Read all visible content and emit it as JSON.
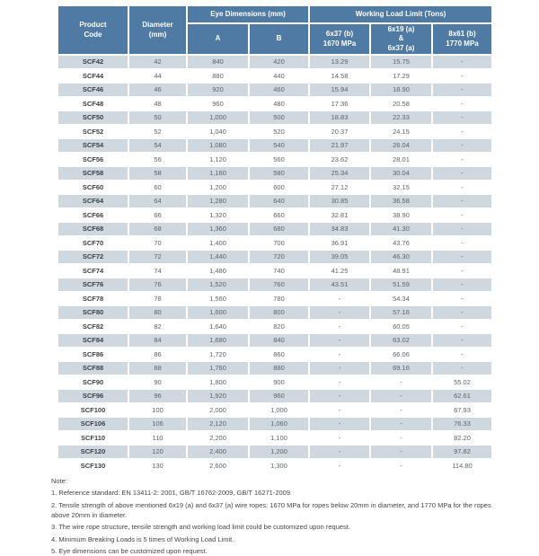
{
  "colors": {
    "header_bg": "#4f7aa3",
    "header_text": "#ffffff",
    "row_alt_bg": "#cfd8de",
    "row_bg": "#ffffff",
    "cell_text": "#5d6468",
    "code_text": "#3c4246",
    "note_text": "#474747"
  },
  "table": {
    "headers": {
      "product_code": "Product\nCode",
      "diameter": "Diameter\n(mm)",
      "eye_dimensions": "Eye Dimensions (mm)",
      "working_load_limit": "Working Load Limit (Tons)",
      "sub_a": "A",
      "sub_b": "B",
      "wll_6x37b": "6x37 (b)\n1670 MPa",
      "wll_6x19a": "6x19 (a)\n&\n6x37 (a)",
      "wll_8x61b": "8x61 (b)\n1770 MPa"
    },
    "rows": [
      [
        "SCF42",
        "42",
        "840",
        "420",
        "13.29",
        "15.75",
        "-"
      ],
      [
        "SCF44",
        "44",
        "880",
        "440",
        "14.58",
        "17.29",
        "-"
      ],
      [
        "SCF46",
        "46",
        "920",
        "460",
        "15.94",
        "18.90",
        "-"
      ],
      [
        "SCF48",
        "48",
        "960",
        "480",
        "17.36",
        "20.58",
        "-"
      ],
      [
        "SCF50",
        "50",
        "1,000",
        "500",
        "18.83",
        "22.33",
        "-"
      ],
      [
        "SCF52",
        "52",
        "1,040",
        "520",
        "20.37",
        "24.15",
        "-"
      ],
      [
        "SCF54",
        "54",
        "1,080",
        "540",
        "21.97",
        "26.04",
        "-"
      ],
      [
        "SCF56",
        "56",
        "1,120",
        "560",
        "23.62",
        "28.01",
        "-"
      ],
      [
        "SCF58",
        "58",
        "1,160",
        "580",
        "25.34",
        "30.04",
        "-"
      ],
      [
        "SCF60",
        "60",
        "1,200",
        "600",
        "27.12",
        "32.15",
        "-"
      ],
      [
        "SCF64",
        "64",
        "1,280",
        "640",
        "30.85",
        "36.58",
        "-"
      ],
      [
        "SCF66",
        "66",
        "1,320",
        "660",
        "32.81",
        "38.90",
        "-"
      ],
      [
        "SCF68",
        "68",
        "1,360",
        "680",
        "34.83",
        "41.30",
        "-"
      ],
      [
        "SCF70",
        "70",
        "1,400",
        "700",
        "36.91",
        "43.76",
        "-"
      ],
      [
        "SCF72",
        "72",
        "1,440",
        "720",
        "39.05",
        "46.30",
        "-"
      ],
      [
        "SCF74",
        "74",
        "1,480",
        "740",
        "41.25",
        "48.91",
        "-"
      ],
      [
        "SCF76",
        "76",
        "1,520",
        "760",
        "43.51",
        "51.59",
        "-"
      ],
      [
        "SCF78",
        "78",
        "1,560",
        "780",
        "-",
        "54.34",
        "-"
      ],
      [
        "SCF80",
        "80",
        "1,600",
        "800",
        "-",
        "57.16",
        "-"
      ],
      [
        "SCF82",
        "82",
        "1,640",
        "820",
        "-",
        "60.05",
        "-"
      ],
      [
        "SCF84",
        "84",
        "1,680",
        "840",
        "-",
        "63.02",
        "-"
      ],
      [
        "SCF86",
        "86",
        "1,720",
        "860",
        "-",
        "66.06",
        "-"
      ],
      [
        "SCF88",
        "88",
        "1,760",
        "880",
        "-",
        "69.16",
        "-"
      ],
      [
        "SCF90",
        "90",
        "1,800",
        "900",
        "-",
        "-",
        "55.02"
      ],
      [
        "SCF96",
        "96",
        "1,920",
        "960",
        "-",
        "-",
        "62.61"
      ],
      [
        "SCF100",
        "100",
        "2,000",
        "1,000",
        "-",
        "-",
        "67.93"
      ],
      [
        "SCF106",
        "106",
        "2,120",
        "1,060",
        "-",
        "-",
        "76.33"
      ],
      [
        "SCF110",
        "110",
        "2,200",
        "1,100",
        "-",
        "-",
        "82.20"
      ],
      [
        "SCF120",
        "120",
        "2,400",
        "1,200",
        "-",
        "-",
        "97.82"
      ],
      [
        "SCF130",
        "130",
        "2,600",
        "1,300",
        "-",
        "-",
        "114.80"
      ]
    ]
  },
  "notes": {
    "title": "Note:",
    "items": [
      "1. Reference standard: EN 13411-2: 2001, GB/T 16762-2009, GB/T 16271-2009.",
      "2. Tensile strength of above mentioned 6x19 (a) and 6x37 (a) wire ropes: 1670 MPa for ropes below 20mm in diameter, and 1770 MPa for the ropes above 20mm in diameter.",
      "3. The wire rope structure, tensile strength and working load limit could be customized upon request.",
      "4. Minimum Breaking Loads is 5 times of Working Load Limit.",
      "5. Eye dimensions can be customized upon request."
    ]
  }
}
